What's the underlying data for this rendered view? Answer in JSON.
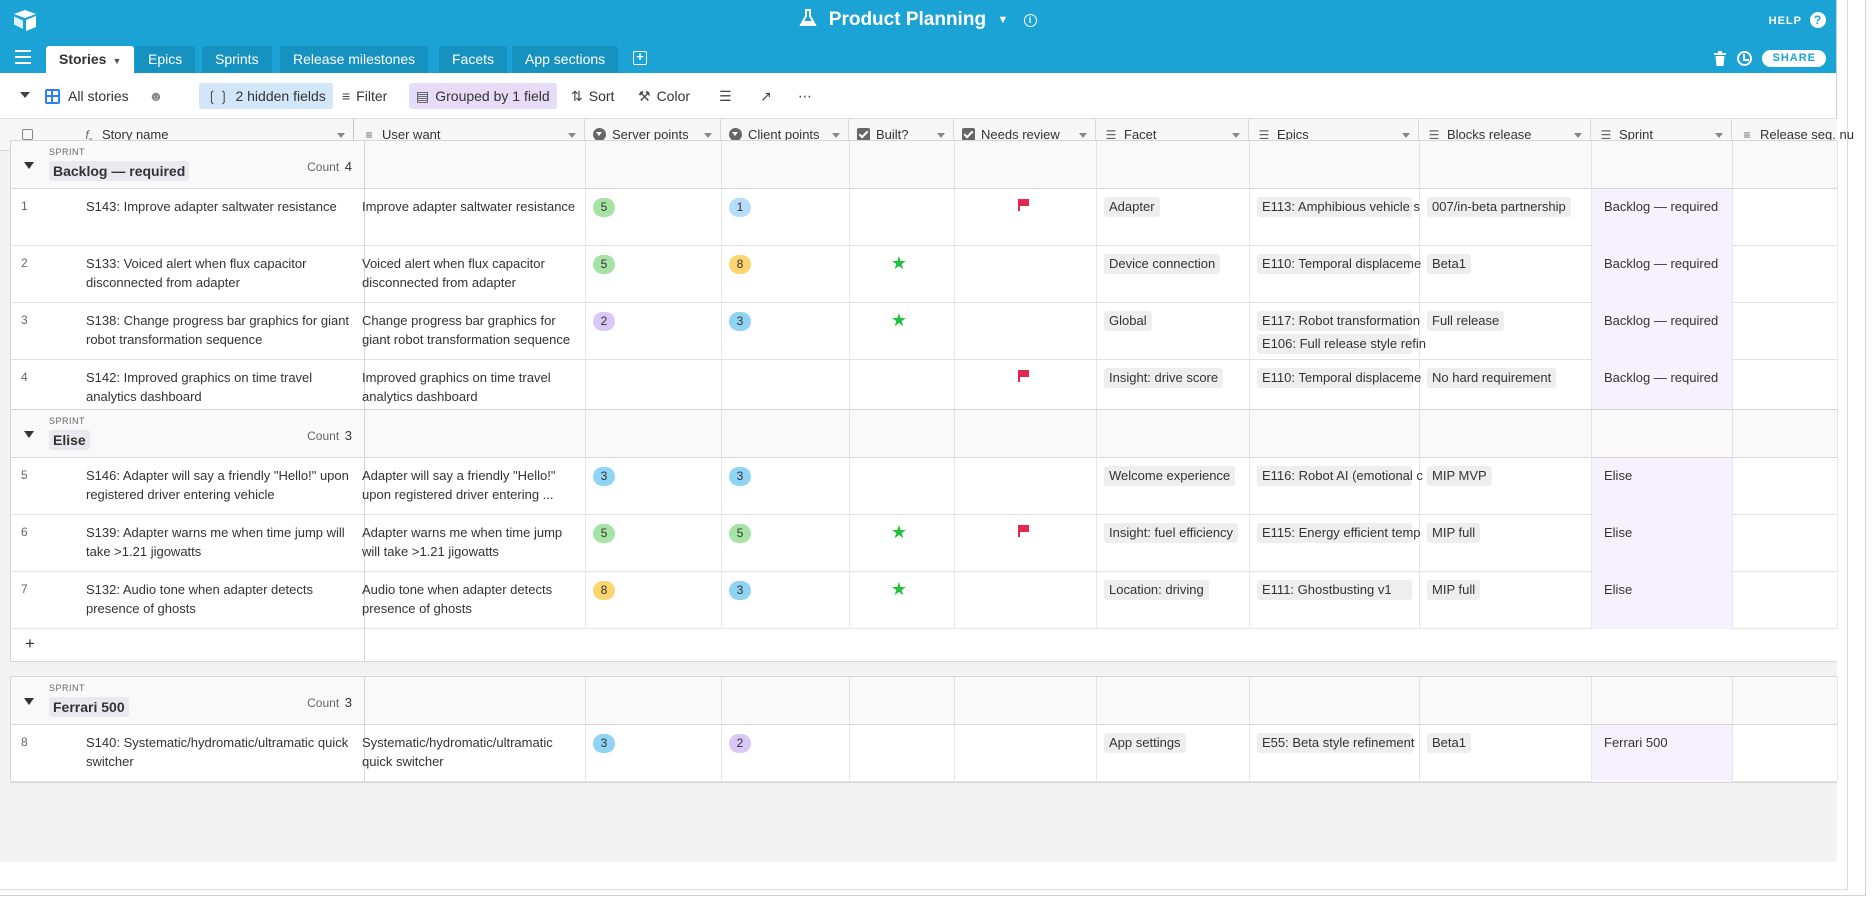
{
  "header": {
    "title": "Product Planning",
    "help_label": "HELP",
    "share_label": "SHARE"
  },
  "tabs": [
    {
      "label": "Stories"
    },
    {
      "label": "Epics"
    },
    {
      "label": "Sprints"
    },
    {
      "label": "Release milestones"
    },
    {
      "label": "Facets"
    },
    {
      "label": "App sections"
    }
  ],
  "toolbar": {
    "view_name": "All stories",
    "hidden_fields": "2 hidden fields",
    "filter": "Filter",
    "grouped": "Grouped by 1 field",
    "sort": "Sort",
    "color": "Color"
  },
  "columns": {
    "story_name": "Story name",
    "user_want": "User want",
    "server_points": "Server points",
    "client_points": "Client points",
    "built": "Built?",
    "needs_review": "Needs review",
    "facet": "Facet",
    "epics": "Epics",
    "blocks_release": "Blocks release",
    "sprint": "Sprint",
    "release_seq": "Release seq. nu"
  },
  "point_colors": {
    "1": "#b8dcfb",
    "2": "#d9c8f6",
    "3": "#8fd4f2",
    "5": "#a7e3a4",
    "8": "#fbd56f"
  },
  "groups": [
    {
      "label": "SPRINT",
      "name": "Backlog — required",
      "count_label": "Count",
      "count": "4",
      "rows": [
        {
          "num": "1",
          "story": "S143: Improve adapter saltwater resistance",
          "want": "Improve adapter saltwater resistance",
          "server": "5",
          "client": "1",
          "built": false,
          "review": true,
          "facet": "Adapter",
          "epics": [
            "E113: Amphibious vehicle s"
          ],
          "blocks": "007/in-beta partnership",
          "sprint": "Backlog — required"
        },
        {
          "num": "2",
          "story": "S133: Voiced alert when flux capacitor disconnected from adapter",
          "want": "Voiced alert when flux capacitor disconnected from adapter",
          "server": "5",
          "client": "8",
          "built": true,
          "review": false,
          "facet": "Device connection",
          "epics": [
            "E110: Temporal displaceme"
          ],
          "blocks": "Beta1",
          "sprint": "Backlog — required"
        },
        {
          "num": "3",
          "story": "S138: Change progress bar graphics for giant robot transformation sequence",
          "want": "Change progress bar graphics for giant robot transformation sequence",
          "server": "2",
          "client": "3",
          "built": true,
          "review": false,
          "facet": "Global",
          "epics": [
            "E117: Robot transformation",
            "E106: Full release style refin"
          ],
          "blocks": "Full release",
          "sprint": "Backlog — required"
        },
        {
          "num": "4",
          "story": "S142: Improved graphics on time travel analytics dashboard",
          "want": "Improved graphics on time travel analytics dashboard",
          "server": "",
          "client": "",
          "built": false,
          "review": true,
          "facet": "Insight: drive score",
          "epics": [
            "E110: Temporal displaceme"
          ],
          "blocks": "No hard requirement",
          "sprint": "Backlog — required"
        }
      ]
    },
    {
      "label": "SPRINT",
      "name": "Elise",
      "count_label": "Count",
      "count": "3",
      "rows": [
        {
          "num": "5",
          "story": "S146: Adapter will say a friendly \"Hello!\" upon registered driver entering vehicle",
          "want": "Adapter will say a friendly \"Hello!\" upon registered driver entering ...",
          "server": "3",
          "client": "3",
          "built": false,
          "review": false,
          "facet": "Welcome experience",
          "epics": [
            "E116: Robot AI (emotional c"
          ],
          "blocks": "MIP MVP",
          "sprint": "Elise"
        },
        {
          "num": "6",
          "story": "S139: Adapter warns me when time jump will take >1.21 jigowatts",
          "want": "Adapter warns me when time jump will take >1.21 jigowatts",
          "server": "5",
          "client": "5",
          "built": true,
          "review": true,
          "facet": "Insight: fuel efficiency",
          "epics": [
            "E115: Energy efficient temp"
          ],
          "blocks": "MIP full",
          "sprint": "Elise"
        },
        {
          "num": "7",
          "story": "S132: Audio tone when adapter detects presence of ghosts",
          "want": "Audio tone when adapter detects presence of ghosts",
          "server": "8",
          "client": "3",
          "built": true,
          "review": false,
          "facet": "Location: driving",
          "epics": [
            "E111: Ghostbusting v1"
          ],
          "blocks": "MIP full",
          "sprint": "Elise"
        }
      ]
    },
    {
      "label": "SPRINT",
      "name": "Ferrari 500",
      "count_label": "Count",
      "count": "3",
      "rows": [
        {
          "num": "8",
          "story": "S140: Systematic/hydromatic/ultramatic quick switcher",
          "want": "Systematic/hydromatic/ultramatic quick switcher",
          "server": "3",
          "client": "2",
          "built": false,
          "review": false,
          "facet": "App settings",
          "epics": [
            "E55: Beta style refinement"
          ],
          "blocks": "Beta1",
          "sprint": "Ferrari 500"
        }
      ]
    }
  ]
}
